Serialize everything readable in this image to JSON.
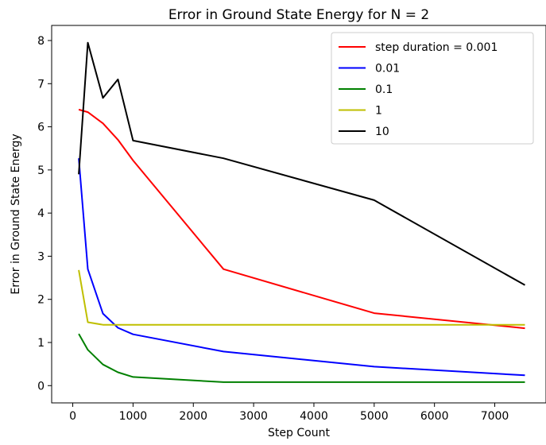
{
  "chart_data": {
    "type": "line",
    "title": "Error in Ground State Energy for N = 2",
    "xlabel": "Step Count",
    "ylabel": "Error in Ground State Energy",
    "xlim": [
      -350,
      7850
    ],
    "ylim": [
      -0.4,
      8.35
    ],
    "xticks": [
      0,
      1000,
      2000,
      3000,
      4000,
      5000,
      6000,
      7000
    ],
    "yticks": [
      0,
      1,
      2,
      3,
      4,
      5,
      6,
      7,
      8
    ],
    "grid": false,
    "legend_position": "top-right",
    "series": [
      {
        "name": "step duration = 0.001",
        "color": "#ff0000",
        "x": [
          100,
          250,
          500,
          750,
          1000,
          2500,
          5000,
          7500
        ],
        "y": [
          6.4,
          6.34,
          6.08,
          5.7,
          5.22,
          2.7,
          1.68,
          1.33
        ]
      },
      {
        "name": "0.01",
        "color": "#0000ff",
        "x": [
          100,
          250,
          500,
          750,
          1000,
          2500,
          5000,
          7500
        ],
        "y": [
          5.27,
          2.7,
          1.67,
          1.34,
          1.19,
          0.79,
          0.44,
          0.24
        ]
      },
      {
        "name": "0.1",
        "color": "#008000",
        "x": [
          100,
          250,
          500,
          750,
          1000,
          2500,
          5000,
          7500
        ],
        "y": [
          1.2,
          0.83,
          0.49,
          0.31,
          0.2,
          0.08,
          0.08,
          0.08
        ]
      },
      {
        "name": "1",
        "color": "#bfbf00",
        "x": [
          100,
          250,
          500,
          750,
          1000,
          2500,
          5000,
          7500
        ],
        "y": [
          2.68,
          1.47,
          1.41,
          1.41,
          1.41,
          1.41,
          1.41,
          1.41
        ]
      },
      {
        "name": "10",
        "color": "#000000",
        "x": [
          100,
          250,
          500,
          750,
          1000,
          2500,
          5000,
          7500
        ],
        "y": [
          4.9,
          7.95,
          6.67,
          7.1,
          5.68,
          5.27,
          4.3,
          2.33
        ]
      }
    ]
  }
}
